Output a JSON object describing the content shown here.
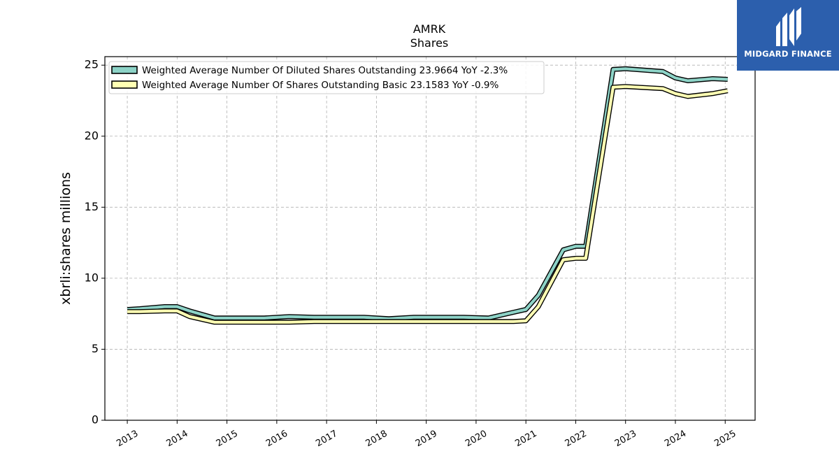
{
  "chart_data": {
    "type": "line",
    "title": "AMRK",
    "subtitle": "Shares",
    "ylabel": "xbrli:shares millions",
    "xlabel": "",
    "ylim": [
      0,
      25.6
    ],
    "xlim": [
      2012.55,
      2025.6
    ],
    "yticks": [
      0,
      5,
      10,
      15,
      20,
      25
    ],
    "xticks": [
      "2013",
      "2014",
      "2015",
      "2016",
      "2017",
      "2018",
      "2019",
      "2020",
      "2021",
      "2022",
      "2023",
      "2024",
      "2025"
    ],
    "grid": true,
    "legend_position": "upper-left",
    "series": [
      {
        "name": "Weighted Average Number Of Diluted Shares Outstanding  23.9664 YoY -2.3%",
        "color": "#8dd3c7",
        "x": [
          2013.0,
          2013.25,
          2013.75,
          2014.0,
          2014.25,
          2014.75,
          2015.75,
          2016.25,
          2016.75,
          2017.25,
          2017.75,
          2018.25,
          2018.75,
          2019.25,
          2019.75,
          2020.25,
          2020.75,
          2021.0,
          2021.25,
          2021.75,
          2022.0,
          2022.2,
          2022.75,
          2023.0,
          2023.75,
          2024.0,
          2024.25,
          2024.75,
          2025.05
        ],
        "y": [
          7.8,
          7.85,
          8.0,
          8.0,
          7.7,
          7.2,
          7.2,
          7.3,
          7.25,
          7.25,
          7.25,
          7.15,
          7.25,
          7.25,
          7.25,
          7.2,
          7.6,
          7.8,
          8.8,
          12.0,
          12.25,
          12.25,
          24.7,
          24.75,
          24.55,
          24.1,
          23.9,
          24.05,
          24.0
        ]
      },
      {
        "name": "Weighted Average Number Of Shares Outstanding Basic  23.1583 YoY -0.9%",
        "color": "#ffffb3",
        "x": [
          2013.0,
          2013.25,
          2013.75,
          2014.0,
          2014.25,
          2014.75,
          2015.75,
          2016.25,
          2016.75,
          2017.25,
          2017.75,
          2018.25,
          2018.75,
          2019.25,
          2019.75,
          2020.25,
          2020.75,
          2021.0,
          2021.25,
          2021.75,
          2022.0,
          2022.2,
          2022.75,
          2023.0,
          2023.75,
          2024.0,
          2024.25,
          2024.75,
          2025.05
        ],
        "y": [
          7.65,
          7.65,
          7.7,
          7.7,
          7.3,
          6.9,
          6.9,
          6.9,
          6.95,
          6.95,
          6.95,
          6.95,
          6.95,
          6.95,
          6.95,
          6.95,
          6.95,
          7.0,
          8.0,
          11.3,
          11.4,
          11.4,
          23.45,
          23.5,
          23.35,
          23.0,
          22.8,
          23.0,
          23.2
        ]
      }
    ]
  },
  "logo": {
    "text": "MIDGARD FINANCE",
    "background": "#2c5fad"
  }
}
